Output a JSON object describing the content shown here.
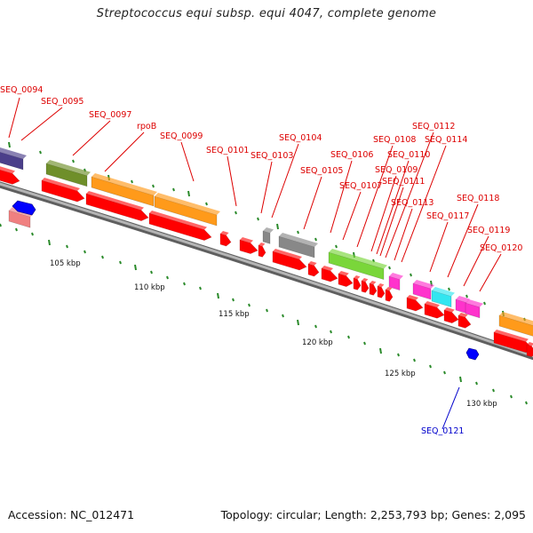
{
  "title": "Streptococcus equi subsp. equi 4047, complete genome",
  "footer": {
    "accession": "Accession: NC_012471",
    "topology": "Topology: circular; Length: 2,253,793 bp; Genes: 2,095"
  },
  "colors": {
    "cds_arrow": "#ff0000",
    "backbone": "#8c8c8c",
    "tick": "#2a8a2a",
    "label_red": "#dd0000",
    "label_blue": "#0000cc"
  },
  "scale_labels": [
    "105 kbp",
    "110 kbp",
    "115 kbp",
    "120 kbp",
    "125 kbp",
    "130 kbp"
  ],
  "gene_labels": [
    "SEQ_0094",
    "SEQ_0095",
    "SEQ_0097",
    "rpoB",
    "SEQ_0099",
    "SEQ_0101",
    "SEQ_0103",
    "SEQ_0104",
    "SEQ_0105",
    "SEQ_0106",
    "SEQ_0107",
    "SEQ_0108",
    "SEQ_0109",
    "SEQ_0110",
    "SEQ_0111",
    "SEQ_0112",
    "SEQ_0113",
    "SEQ_0114",
    "SEQ_0117",
    "SEQ_0118",
    "SEQ_0119",
    "SEQ_0120",
    "SEQ_0121"
  ],
  "cog_colors": [
    "#4b3f8a",
    "#6f8f2a",
    "#ff9a1a",
    "#888888",
    "#7ad63a",
    "#ff33cc",
    "#33e6f0",
    "#f08080",
    "#0000ff"
  ]
}
